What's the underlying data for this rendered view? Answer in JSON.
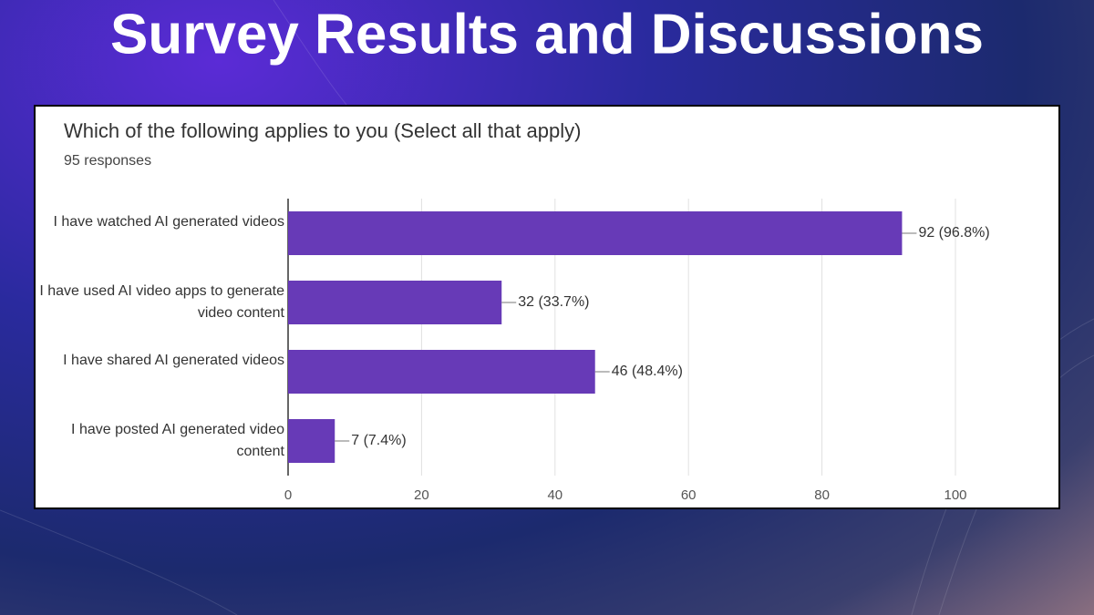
{
  "slide_title": "Survey Results and Discussions",
  "chart_data": {
    "type": "bar",
    "orientation": "horizontal",
    "title": "Which of the following applies to you (Select all that apply)",
    "subtitle": "95 responses",
    "categories": [
      "I have watched AI generated videos",
      "I have used AI video apps to generate video content",
      "I have shared AI generated videos",
      "I have posted AI generated video content"
    ],
    "values": [
      92,
      32,
      46,
      7
    ],
    "value_labels": [
      "92 (96.8%)",
      "32 (33.7%)",
      "46 (48.4%)",
      "7 (7.4%)"
    ],
    "color": "#673ab7",
    "xlim": [
      0,
      100
    ],
    "xticks": [
      0,
      20,
      40,
      60,
      80,
      100
    ],
    "grid": true
  }
}
